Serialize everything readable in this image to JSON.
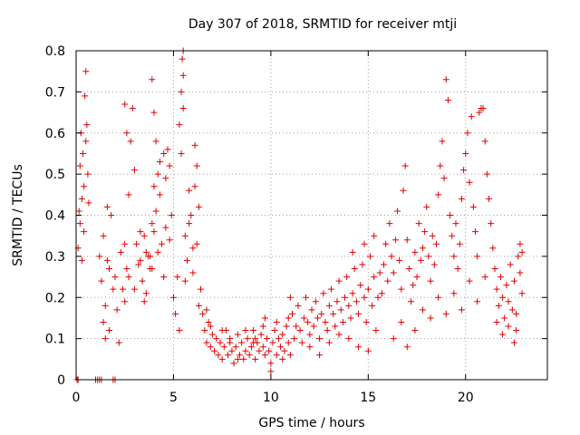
{
  "chart_data": {
    "type": "scatter",
    "title": "Day 307 of 2018, SRMTID for receiver mtji",
    "xlabel": "GPS time / hours",
    "ylabel": "SRMTID / TECUs",
    "xlim": [
      0,
      24.2
    ],
    "ylim": [
      0,
      0.8
    ],
    "x_ticks": [
      0,
      5,
      10,
      15,
      20
    ],
    "x_tick_labels": [
      "0",
      "5",
      "10",
      "15",
      "20"
    ],
    "y_ticks": [
      0,
      0.1,
      0.2,
      0.3,
      0.4,
      0.5,
      0.6,
      0.7,
      0.8
    ],
    "y_tick_labels": [
      "0",
      "0.1",
      "0.2",
      "0.3",
      "0.4",
      "0.5",
      "0.6",
      "0.7",
      "0.8"
    ],
    "grid": true,
    "marker": "plus",
    "color": "#e00000",
    "series": [
      {
        "name": "SRMTID",
        "points": [
          [
            0.05,
            0.0
          ],
          [
            0.1,
            0.0
          ],
          [
            1.0,
            0.0
          ],
          [
            1.1,
            0.0
          ],
          [
            1.2,
            0.0
          ],
          [
            1.3,
            0.0
          ],
          [
            1.9,
            0.0
          ],
          [
            2.0,
            0.0
          ],
          [
            0.1,
            0.32
          ],
          [
            0.15,
            0.41
          ],
          [
            0.2,
            0.52
          ],
          [
            0.25,
            0.6
          ],
          [
            0.3,
            0.44
          ],
          [
            0.35,
            0.55
          ],
          [
            0.4,
            0.47
          ],
          [
            0.45,
            0.69
          ],
          [
            0.5,
            0.75
          ],
          [
            0.55,
            0.62
          ],
          [
            0.6,
            0.5
          ],
          [
            0.65,
            0.43
          ],
          [
            0.2,
            0.38
          ],
          [
            0.3,
            0.29
          ],
          [
            0.4,
            0.36
          ],
          [
            0.5,
            0.58
          ],
          [
            1.2,
            0.3
          ],
          [
            1.3,
            0.24
          ],
          [
            1.4,
            0.35
          ],
          [
            1.5,
            0.18
          ],
          [
            1.6,
            0.29
          ],
          [
            1.7,
            0.27
          ],
          [
            1.8,
            0.4
          ],
          [
            1.9,
            0.22
          ],
          [
            1.4,
            0.14
          ],
          [
            1.5,
            0.1
          ],
          [
            1.6,
            0.42
          ],
          [
            1.7,
            0.12
          ],
          [
            2.0,
            0.25
          ],
          [
            2.1,
            0.17
          ],
          [
            2.2,
            0.09
          ],
          [
            2.3,
            0.31
          ],
          [
            2.4,
            0.22
          ],
          [
            2.5,
            0.19
          ],
          [
            2.6,
            0.27
          ],
          [
            2.7,
            0.45
          ],
          [
            2.8,
            0.58
          ],
          [
            2.9,
            0.66
          ],
          [
            3.0,
            0.51
          ],
          [
            3.1,
            0.33
          ],
          [
            3.2,
            0.28
          ],
          [
            3.3,
            0.36
          ],
          [
            3.4,
            0.24
          ],
          [
            3.5,
            0.19
          ],
          [
            3.6,
            0.31
          ],
          [
            3.7,
            0.3
          ],
          [
            3.8,
            0.27
          ],
          [
            3.9,
            0.38
          ],
          [
            4.0,
            0.36
          ],
          [
            4.1,
            0.41
          ],
          [
            4.2,
            0.5
          ],
          [
            4.3,
            0.45
          ],
          [
            4.4,
            0.33
          ],
          [
            4.5,
            0.55
          ],
          [
            4.6,
            0.37
          ],
          [
            4.7,
            0.56
          ],
          [
            4.8,
            0.52
          ],
          [
            4.9,
            0.4
          ],
          [
            2.5,
            0.33
          ],
          [
            2.7,
            0.25
          ],
          [
            3.0,
            0.22
          ],
          [
            3.3,
            0.29
          ],
          [
            3.6,
            0.21
          ],
          [
            3.9,
            0.27
          ],
          [
            4.2,
            0.31
          ],
          [
            4.5,
            0.25
          ],
          [
            4.8,
            0.34
          ],
          [
            4.0,
            0.47
          ],
          [
            4.3,
            0.53
          ],
          [
            4.6,
            0.49
          ],
          [
            3.8,
            0.3
          ],
          [
            3.5,
            0.35
          ],
          [
            3.9,
            0.73
          ],
          [
            4.0,
            0.65
          ],
          [
            4.1,
            0.58
          ],
          [
            2.5,
            0.67
          ],
          [
            2.6,
            0.6
          ],
          [
            5.0,
            0.2
          ],
          [
            5.1,
            0.16
          ],
          [
            5.2,
            0.25
          ],
          [
            5.3,
            0.12
          ],
          [
            5.4,
            0.7
          ],
          [
            5.5,
            0.8
          ],
          [
            5.45,
            0.78
          ],
          [
            5.5,
            0.74
          ],
          [
            5.5,
            0.66
          ],
          [
            5.6,
            0.35
          ],
          [
            5.7,
            0.29
          ],
          [
            5.8,
            0.46
          ],
          [
            5.9,
            0.4
          ],
          [
            6.0,
            0.32
          ],
          [
            6.1,
            0.57
          ],
          [
            6.2,
            0.52
          ],
          [
            6.3,
            0.42
          ],
          [
            5.6,
            0.24
          ],
          [
            5.8,
            0.38
          ],
          [
            6.0,
            0.26
          ],
          [
            6.2,
            0.33
          ],
          [
            5.3,
            0.62
          ],
          [
            5.4,
            0.55
          ],
          [
            6.1,
            0.47
          ],
          [
            6.3,
            0.18
          ],
          [
            6.4,
            0.22
          ],
          [
            6.5,
            0.16
          ],
          [
            6.6,
            0.12
          ],
          [
            6.7,
            0.09
          ],
          [
            6.8,
            0.14
          ],
          [
            6.9,
            0.08
          ],
          [
            7.0,
            0.11
          ],
          [
            6.7,
            0.17
          ],
          [
            6.9,
            0.13
          ],
          [
            7.1,
            0.07
          ],
          [
            7.2,
            0.1
          ],
          [
            7.3,
            0.06
          ],
          [
            7.4,
            0.09
          ],
          [
            7.5,
            0.05
          ],
          [
            7.6,
            0.08
          ],
          [
            7.7,
            0.12
          ],
          [
            7.8,
            0.06
          ],
          [
            7.9,
            0.09
          ],
          [
            8.0,
            0.07
          ],
          [
            8.1,
            0.04
          ],
          [
            8.2,
            0.08
          ],
          [
            8.3,
            0.11
          ],
          [
            8.4,
            0.06
          ],
          [
            8.5,
            0.09
          ],
          [
            8.6,
            0.05
          ],
          [
            8.7,
            0.07
          ],
          [
            8.8,
            0.1
          ],
          [
            8.9,
            0.06
          ],
          [
            9.0,
            0.08
          ],
          [
            9.1,
            0.12
          ],
          [
            9.2,
            0.05
          ],
          [
            9.3,
            0.09
          ],
          [
            9.4,
            0.07
          ],
          [
            9.5,
            0.11
          ],
          [
            9.6,
            0.08
          ],
          [
            9.7,
            0.06
          ],
          [
            9.8,
            0.1
          ],
          [
            9.9,
            0.07
          ],
          [
            10.0,
            0.04
          ],
          [
            10.1,
            0.09
          ],
          [
            10.2,
            0.12
          ],
          [
            10.3,
            0.06
          ],
          [
            10.4,
            0.1
          ],
          [
            10.5,
            0.08
          ],
          [
            10.6,
            0.11
          ],
          [
            10.7,
            0.07
          ],
          [
            10.8,
            0.13
          ],
          [
            10.9,
            0.09
          ],
          [
            11.0,
            0.06
          ],
          [
            7.5,
            0.12
          ],
          [
            7.9,
            0.1
          ],
          [
            8.3,
            0.05
          ],
          [
            8.7,
            0.12
          ],
          [
            9.2,
            0.1
          ],
          [
            9.6,
            0.13
          ],
          [
            9.7,
            0.15
          ],
          [
            10.0,
            0.02
          ],
          [
            10.3,
            0.14
          ],
          [
            10.6,
            0.05
          ],
          [
            9.1,
            0.09
          ],
          [
            10.9,
            0.15
          ],
          [
            11.0,
            0.2
          ],
          [
            11.1,
            0.16
          ],
          [
            11.2,
            0.1
          ],
          [
            11.3,
            0.13
          ],
          [
            11.4,
            0.18
          ],
          [
            11.5,
            0.12
          ],
          [
            11.6,
            0.09
          ],
          [
            11.7,
            0.15
          ],
          [
            11.8,
            0.2
          ],
          [
            11.9,
            0.14
          ],
          [
            12.0,
            0.11
          ],
          [
            12.1,
            0.17
          ],
          [
            12.2,
            0.13
          ],
          [
            12.3,
            0.19
          ],
          [
            12.4,
            0.15
          ],
          [
            12.5,
            0.1
          ],
          [
            12.6,
            0.16
          ],
          [
            12.7,
            0.21
          ],
          [
            12.8,
            0.14
          ],
          [
            12.9,
            0.12
          ],
          [
            13.0,
            0.18
          ],
          [
            13.1,
            0.22
          ],
          [
            13.2,
            0.16
          ],
          [
            13.3,
            0.13
          ],
          [
            13.4,
            0.19
          ],
          [
            13.5,
            0.24
          ],
          [
            13.6,
            0.17
          ],
          [
            13.7,
            0.14
          ],
          [
            13.8,
            0.2
          ],
          [
            13.9,
            0.25
          ],
          [
            14.0,
            0.18
          ],
          [
            14.1,
            0.15
          ],
          [
            14.2,
            0.21
          ],
          [
            14.3,
            0.27
          ],
          [
            14.4,
            0.19
          ],
          [
            14.5,
            0.16
          ],
          [
            14.6,
            0.23
          ],
          [
            14.7,
            0.28
          ],
          [
            14.8,
            0.2
          ],
          [
            14.9,
            0.14
          ],
          [
            15.0,
            0.22
          ],
          [
            15.1,
            0.3
          ],
          [
            15.2,
            0.18
          ],
          [
            15.3,
            0.25
          ],
          [
            15.4,
            0.12
          ],
          [
            15.5,
            0.2
          ],
          [
            15.6,
            0.26
          ],
          [
            15.7,
            0.21
          ],
          [
            12.0,
            0.08
          ],
          [
            12.5,
            0.06
          ],
          [
            13.0,
            0.09
          ],
          [
            13.5,
            0.11
          ],
          [
            14.0,
            0.1
          ],
          [
            14.5,
            0.08
          ],
          [
            15.0,
            0.07
          ],
          [
            14.2,
            0.31
          ],
          [
            14.8,
            0.33
          ],
          [
            15.3,
            0.35
          ],
          [
            15.8,
            0.28
          ],
          [
            15.9,
            0.33
          ],
          [
            16.0,
            0.24
          ],
          [
            16.1,
            0.38
          ],
          [
            16.2,
            0.3
          ],
          [
            16.3,
            0.26
          ],
          [
            16.4,
            0.34
          ],
          [
            16.5,
            0.41
          ],
          [
            16.6,
            0.29
          ],
          [
            16.7,
            0.22
          ],
          [
            16.8,
            0.46
          ],
          [
            16.9,
            0.52
          ],
          [
            17.0,
            0.34
          ],
          [
            17.1,
            0.27
          ],
          [
            17.2,
            0.19
          ],
          [
            17.3,
            0.23
          ],
          [
            17.4,
            0.31
          ],
          [
            17.5,
            0.25
          ],
          [
            17.6,
            0.38
          ],
          [
            17.7,
            0.29
          ],
          [
            17.8,
            0.32
          ],
          [
            17.9,
            0.36
          ],
          [
            18.0,
            0.42
          ],
          [
            18.1,
            0.3
          ],
          [
            18.2,
            0.24
          ],
          [
            18.3,
            0.35
          ],
          [
            18.4,
            0.28
          ],
          [
            18.5,
            0.33
          ],
          [
            18.6,
            0.45
          ],
          [
            18.7,
            0.52
          ],
          [
            18.8,
            0.58
          ],
          [
            18.9,
            0.49
          ],
          [
            19.0,
            0.73
          ],
          [
            19.1,
            0.68
          ],
          [
            19.2,
            0.4
          ],
          [
            19.3,
            0.35
          ],
          [
            19.4,
            0.3
          ],
          [
            19.5,
            0.38
          ],
          [
            19.6,
            0.27
          ],
          [
            19.7,
            0.33
          ],
          [
            19.8,
            0.44
          ],
          [
            19.9,
            0.51
          ],
          [
            20.0,
            0.55
          ],
          [
            20.1,
            0.6
          ],
          [
            20.2,
            0.48
          ],
          [
            20.3,
            0.64
          ],
          [
            20.4,
            0.42
          ],
          [
            20.5,
            0.36
          ],
          [
            20.6,
            0.3
          ],
          [
            20.7,
            0.65
          ],
          [
            20.8,
            0.66
          ],
          [
            20.9,
            0.66
          ],
          [
            21.0,
            0.58
          ],
          [
            21.1,
            0.5
          ],
          [
            21.2,
            0.44
          ],
          [
            21.3,
            0.38
          ],
          [
            16.3,
            0.1
          ],
          [
            16.7,
            0.14
          ],
          [
            17.0,
            0.08
          ],
          [
            17.4,
            0.12
          ],
          [
            17.8,
            0.17
          ],
          [
            18.2,
            0.15
          ],
          [
            18.6,
            0.2
          ],
          [
            19.0,
            0.16
          ],
          [
            19.4,
            0.21
          ],
          [
            19.8,
            0.17
          ],
          [
            20.2,
            0.24
          ],
          [
            20.6,
            0.19
          ],
          [
            21.0,
            0.25
          ],
          [
            21.4,
            0.32
          ],
          [
            21.5,
            0.27
          ],
          [
            21.6,
            0.22
          ],
          [
            21.7,
            0.18
          ],
          [
            21.8,
            0.25
          ],
          [
            21.9,
            0.2
          ],
          [
            22.0,
            0.15
          ],
          [
            22.1,
            0.23
          ],
          [
            22.2,
            0.19
          ],
          [
            22.3,
            0.28
          ],
          [
            22.4,
            0.17
          ],
          [
            22.5,
            0.24
          ],
          [
            22.6,
            0.12
          ],
          [
            22.7,
            0.3
          ],
          [
            22.8,
            0.26
          ],
          [
            22.9,
            0.21
          ],
          [
            21.6,
            0.14
          ],
          [
            21.9,
            0.11
          ],
          [
            22.2,
            0.13
          ],
          [
            22.5,
            0.09
          ],
          [
            22.8,
            0.33
          ],
          [
            22.9,
            0.31
          ],
          [
            22.6,
            0.16
          ]
        ]
      }
    ]
  }
}
